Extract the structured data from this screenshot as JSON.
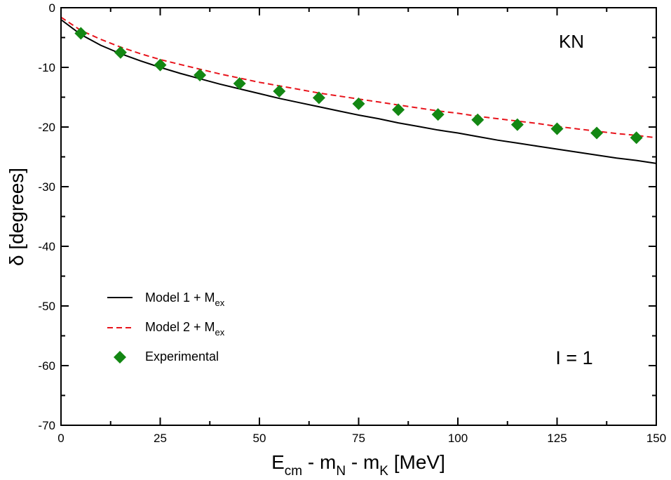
{
  "chart_data": {
    "type": "line",
    "xlim": [
      0,
      150
    ],
    "ylim": [
      -70,
      0
    ],
    "xticks": [
      0,
      25,
      50,
      75,
      100,
      125,
      150
    ],
    "yticks": [
      0,
      -10,
      -20,
      -30,
      -40,
      -50,
      -60,
      -70
    ],
    "xlabel": {
      "main": "E",
      "sub1": "cm",
      "mid1": " - m",
      "sub2": "N",
      "mid2": " - m",
      "sub3": "K",
      "tail": " [MeV]"
    },
    "ylabel": "δ [degrees]",
    "legend_position": "bottom-left",
    "annotations": {
      "top_right": "KN",
      "bottom_right": "I = 1"
    },
    "series": [
      {
        "name": "Model 1 + Mex",
        "legend_main": "Model 1 + M",
        "legend_sub": "ex",
        "style": "solid",
        "color": "#000000",
        "x": [
          0,
          5,
          10,
          15,
          20,
          25,
          30,
          35,
          40,
          45,
          50,
          55,
          60,
          65,
          70,
          75,
          80,
          85,
          90,
          95,
          100,
          105,
          110,
          115,
          120,
          125,
          130,
          135,
          140,
          145,
          150
        ],
        "y": [
          -2.0,
          -4.5,
          -6.3,
          -7.7,
          -8.9,
          -10.0,
          -11.0,
          -11.9,
          -12.8,
          -13.6,
          -14.4,
          -15.2,
          -15.9,
          -16.6,
          -17.3,
          -18.0,
          -18.6,
          -19.3,
          -19.9,
          -20.5,
          -21.0,
          -21.6,
          -22.2,
          -22.7,
          -23.2,
          -23.7,
          -24.2,
          -24.7,
          -25.2,
          -25.6,
          -26.1
        ]
      },
      {
        "name": "Model 2 + Mex",
        "legend_main": "Model 2 + M",
        "legend_sub": "ex",
        "style": "dashed",
        "color": "#e8141c",
        "x": [
          0,
          5,
          10,
          15,
          20,
          25,
          30,
          35,
          40,
          45,
          50,
          55,
          60,
          65,
          70,
          75,
          80,
          85,
          90,
          95,
          100,
          105,
          110,
          115,
          120,
          125,
          130,
          135,
          140,
          145,
          150
        ],
        "y": [
          -1.6,
          -3.8,
          -5.3,
          -6.6,
          -7.7,
          -8.7,
          -9.5,
          -10.3,
          -11.1,
          -11.8,
          -12.5,
          -13.1,
          -13.7,
          -14.3,
          -14.8,
          -15.3,
          -15.8,
          -16.3,
          -16.8,
          -17.3,
          -17.7,
          -18.2,
          -18.6,
          -19.0,
          -19.4,
          -19.9,
          -20.3,
          -20.7,
          -21.1,
          -21.4,
          -21.8
        ]
      },
      {
        "name": "Experimental",
        "legend_main": "Experimental",
        "legend_sub": "",
        "style": "markers",
        "marker": "diamond",
        "color": "#138713",
        "x": [
          5,
          15,
          25,
          35,
          45,
          55,
          65,
          75,
          85,
          95,
          105,
          115,
          125,
          135,
          145
        ],
        "y": [
          -4.3,
          -7.5,
          -9.6,
          -11.3,
          -12.7,
          -14.0,
          -15.1,
          -16.1,
          -17.1,
          -17.9,
          -18.8,
          -19.6,
          -20.3,
          -21.0,
          -21.8
        ]
      }
    ]
  }
}
